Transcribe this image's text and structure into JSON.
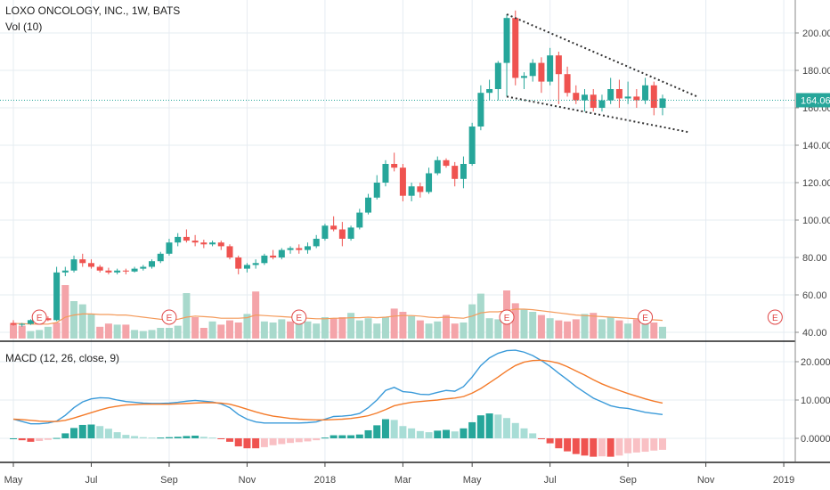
{
  "header": {
    "symbol_line": "LOXO ONCOLOGY, INC., 1W, BATS",
    "vol_line": "Vol (10)",
    "macd_line": "MACD (12, 26, close, 9)"
  },
  "colors": {
    "up": "#26a69a",
    "down": "#ef5350",
    "vol_up": "#a8d9cc",
    "vol_down": "#f4a4a9",
    "vol_ma": "#f49a5a",
    "macd_line": "#3a9ad9",
    "signal_line": "#f47b2a",
    "hist_up_strong": "#26a69a",
    "hist_up_weak": "#a8ddd6",
    "hist_down_strong": "#ef5350",
    "hist_down_weak": "#f9c0c4",
    "price_line": "#26a69a",
    "grid": "#e6ecf2",
    "earnings": "#e04848",
    "trendline": "#333333"
  },
  "chart_data": [
    {
      "type": "candlestick",
      "name": "price",
      "current_price_label": "164.06",
      "current_price": 164.06,
      "ylim": [
        30,
        213
      ],
      "y_ticks": [
        40,
        60,
        80,
        100,
        120,
        140,
        160,
        180,
        200
      ],
      "y_tick_labels": [
        "40.00",
        "60.00",
        "80.00",
        "100.00",
        "120.00",
        "140.00",
        "160.00",
        "180.00",
        "200.00"
      ],
      "x_ticks": [
        {
          "label": "May",
          "week": 0
        },
        {
          "label": "Jul",
          "week": 9
        },
        {
          "label": "Sep",
          "week": 18
        },
        {
          "label": "Nov",
          "week": 27
        },
        {
          "label": "2018",
          "week": 36
        },
        {
          "label": "Mar",
          "week": 45
        },
        {
          "label": "May",
          "week": 53
        },
        {
          "label": "Jul",
          "week": 62
        },
        {
          "label": "Sep",
          "week": 71
        },
        {
          "label": "Nov",
          "week": 80
        },
        {
          "label": "2019",
          "week": 89
        }
      ],
      "candles": [
        [
          45,
          46.5,
          43.5,
          44
        ],
        [
          44,
          45,
          43,
          44.5
        ],
        [
          44.5,
          47,
          44,
          46.5
        ],
        [
          46.5,
          48,
          45.5,
          47.5
        ],
        [
          47.5,
          48.5,
          46,
          46.5
        ],
        [
          46.5,
          75,
          46,
          72
        ],
        [
          72,
          75,
          70,
          73
        ],
        [
          73,
          81,
          72,
          79
        ],
        [
          79,
          82,
          75,
          77
        ],
        [
          77,
          79,
          74,
          75
        ],
        [
          75,
          76,
          72,
          73
        ],
        [
          73,
          74.5,
          71,
          72
        ],
        [
          72,
          74,
          71,
          73
        ],
        [
          73,
          74,
          71,
          72.5
        ],
        [
          72.5,
          75,
          72,
          74
        ],
        [
          74,
          76,
          73,
          75
        ],
        [
          75,
          79,
          74,
          78
        ],
        [
          78,
          83,
          77,
          82
        ],
        [
          82,
          90,
          81,
          88
        ],
        [
          88,
          93,
          86,
          91
        ],
        [
          91,
          95,
          88,
          89
        ],
        [
          89,
          92,
          86,
          88
        ],
        [
          88,
          89.5,
          85,
          87
        ],
        [
          87,
          89,
          86,
          88
        ],
        [
          88,
          89,
          84,
          86
        ],
        [
          86,
          87,
          79,
          80
        ],
        [
          80,
          81,
          71,
          74
        ],
        [
          74,
          77,
          72,
          76
        ],
        [
          76,
          79,
          74,
          77
        ],
        [
          77,
          82,
          76,
          81
        ],
        [
          81,
          84,
          79,
          80
        ],
        [
          80,
          85,
          79,
          84
        ],
        [
          84,
          86,
          82,
          85
        ],
        [
          85,
          87,
          82,
          84
        ],
        [
          84,
          88,
          82,
          86
        ],
        [
          86,
          92,
          85,
          90
        ],
        [
          90,
          98,
          89,
          97
        ],
        [
          97,
          102,
          94,
          95
        ],
        [
          95,
          99,
          86,
          90
        ],
        [
          90,
          97,
          89,
          96
        ],
        [
          96,
          106,
          95,
          104
        ],
        [
          104,
          114,
          103,
          112
        ],
        [
          112,
          124,
          111,
          120
        ],
        [
          120,
          132,
          118,
          130
        ],
        [
          130,
          136,
          126,
          128
        ],
        [
          128,
          130,
          110,
          113
        ],
        [
          113,
          120,
          110,
          118
        ],
        [
          118,
          120,
          112,
          115
        ],
        [
          115,
          128,
          114,
          125
        ],
        [
          125,
          134,
          124,
          132
        ],
        [
          132,
          133,
          128,
          129
        ],
        [
          129,
          131,
          118,
          122
        ],
        [
          122,
          134,
          117,
          130
        ],
        [
          130,
          152,
          129,
          150
        ],
        [
          150,
          172,
          148,
          168
        ],
        [
          168,
          175,
          164,
          170
        ],
        [
          170,
          185,
          164,
          184
        ],
        [
          184,
          210,
          166,
          208
        ],
        [
          208,
          212,
          172,
          176
        ],
        [
          176,
          179,
          170,
          177
        ],
        [
          177,
          186,
          174,
          184
        ],
        [
          184,
          187,
          168,
          174
        ],
        [
          174,
          192,
          172,
          188
        ],
        [
          188,
          190,
          162,
          178
        ],
        [
          178,
          182,
          166,
          168
        ],
        [
          168,
          172,
          162,
          164
        ],
        [
          164,
          170,
          158,
          167
        ],
        [
          167,
          170,
          158,
          160
        ],
        [
          160,
          167,
          158,
          164
        ],
        [
          164,
          176,
          162,
          170
        ],
        [
          170,
          175,
          160,
          165
        ],
        [
          165,
          174,
          162,
          166
        ],
        [
          166,
          170,
          160,
          164
        ],
        [
          164,
          176,
          162,
          172
        ],
        [
          172,
          174,
          156,
          160
        ],
        [
          160,
          167,
          156,
          165
        ]
      ],
      "trendlines": [
        {
          "from": [
            57,
            210
          ],
          "to": [
            79,
            166
          ]
        },
        {
          "from": [
            57,
            166
          ],
          "to": [
            78,
            147
          ]
        }
      ]
    },
    {
      "type": "bar",
      "name": "volume",
      "values": [
        26,
        24,
        14,
        16,
        22,
        30,
        100,
        70,
        64,
        46,
        22,
        28,
        26,
        26,
        16,
        14,
        16,
        20,
        20,
        24,
        85,
        40,
        20,
        32,
        26,
        34,
        30,
        46,
        88,
        32,
        30,
        36,
        32,
        30,
        32,
        28,
        40,
        38,
        40,
        48,
        34,
        38,
        28,
        40,
        56,
        50,
        42,
        34,
        28,
        32,
        44,
        28,
        30,
        64,
        84,
        38,
        36,
        90,
        66,
        54,
        50,
        44,
        38,
        34,
        32,
        36,
        46,
        48,
        36,
        40,
        34,
        28,
        36,
        32,
        30,
        22
      ],
      "up": [
        false,
        false,
        true,
        true,
        true,
        false,
        false,
        true,
        true,
        true,
        false,
        false,
        true,
        false,
        true,
        true,
        true,
        true,
        true,
        true,
        true,
        false,
        false,
        true,
        false,
        false,
        false,
        true,
        false,
        true,
        true,
        true,
        false,
        true,
        true,
        true,
        true,
        false,
        false,
        true,
        true,
        true,
        true,
        true,
        false,
        false,
        true,
        false,
        true,
        true,
        false,
        false,
        true,
        true,
        true,
        true,
        true,
        false,
        false,
        true,
        true,
        false,
        true,
        false,
        false,
        false,
        true,
        false,
        true,
        true,
        false,
        true,
        false,
        true,
        false,
        true
      ],
      "ma": [
        28,
        28,
        27,
        27,
        27,
        30,
        40,
        44,
        46,
        46,
        45,
        45,
        44,
        44,
        42,
        40,
        38,
        36,
        35,
        36,
        40,
        42,
        41,
        40,
        38,
        38,
        38,
        39,
        44,
        43,
        42,
        41,
        40,
        39,
        38,
        37,
        37,
        38,
        38,
        39,
        39,
        40,
        39,
        40,
        42,
        43,
        43,
        42,
        40,
        39,
        40,
        39,
        38,
        42,
        48,
        50,
        50,
        52,
        55,
        55,
        54,
        52,
        50,
        48,
        46,
        44,
        43,
        42,
        41,
        40,
        39,
        38,
        37,
        36,
        35,
        34
      ],
      "earnings_weeks": [
        3,
        18,
        33,
        57,
        73,
        88
      ]
    },
    {
      "type": "line",
      "name": "macd",
      "ylim": [
        -6,
        24
      ],
      "y_ticks": [
        0,
        10,
        20
      ],
      "y_tick_labels": [
        "0.0000",
        "10.0000",
        "20.0000"
      ],
      "series": [
        {
          "name": "MACD",
          "values": [
            5,
            4.4,
            3.8,
            3.8,
            4,
            4.5,
            6,
            8,
            9.5,
            10.3,
            10.6,
            10.5,
            10,
            9.6,
            9.4,
            9.2,
            9.1,
            9.1,
            9.2,
            9.4,
            9.7,
            9.9,
            9.7,
            9.5,
            9,
            8,
            6.2,
            5,
            4.3,
            4,
            4,
            4,
            4,
            4,
            4.1,
            4.3,
            5,
            5.7,
            5.8,
            6,
            6.5,
            8,
            10,
            12.5,
            13.3,
            12.2,
            12,
            11.5,
            11.4,
            12,
            12.5,
            12.3,
            13.5,
            16,
            19,
            21,
            22.2,
            22.9,
            23,
            22.5,
            21.6,
            20.3,
            18.8,
            17,
            15.3,
            13.5,
            12,
            10.5,
            9.5,
            8.5,
            8,
            7.8,
            7.3,
            6.8,
            6.5,
            6.2
          ]
        },
        {
          "name": "Signal",
          "values": [
            5,
            4.9,
            4.7,
            4.5,
            4.4,
            4.4,
            4.7,
            5.3,
            6,
            6.7,
            7.4,
            8,
            8.4,
            8.7,
            8.8,
            8.9,
            8.9,
            8.9,
            8.9,
            9,
            9.1,
            9.2,
            9.3,
            9.3,
            9.2,
            8.9,
            8.3,
            7.6,
            6.9,
            6.3,
            5.8,
            5.5,
            5.2,
            5,
            4.9,
            4.8,
            4.8,
            4.9,
            5,
            5.2,
            5.5,
            5.9,
            6.6,
            7.5,
            8.5,
            9,
            9.4,
            9.6,
            9.8,
            10,
            10.3,
            10.5,
            10.9,
            11.8,
            13,
            14.5,
            16,
            17.6,
            19,
            19.9,
            20.3,
            20.4,
            20.1,
            19.6,
            18.7,
            17.6,
            16.5,
            15.3,
            14.2,
            13.3,
            12.5,
            11.7,
            11,
            10.3,
            9.7,
            9.2
          ]
        }
      ],
      "histogram": [
        0,
        -0.5,
        -0.9,
        -0.7,
        -0.4,
        0.1,
        1.3,
        2.7,
        3.5,
        3.6,
        3.2,
        2.5,
        1.6,
        0.9,
        0.6,
        0.3,
        0.2,
        0.2,
        0.3,
        0.4,
        0.6,
        0.7,
        0.4,
        0.2,
        -0.2,
        -0.9,
        -2.1,
        -2.6,
        -2.6,
        -2.3,
        -1.8,
        -1.5,
        -1.2,
        -1,
        -0.8,
        -0.5,
        0.2,
        0.8,
        0.8,
        0.8,
        1,
        2.1,
        3.4,
        5,
        4.8,
        3.2,
        2.6,
        1.9,
        1.6,
        2,
        2.2,
        1.8,
        2.6,
        4.2,
        6,
        6.5,
        6.2,
        5.3,
        4,
        2.6,
        1.3,
        -0.1,
        -1.3,
        -2.6,
        -3.4,
        -4.1,
        -4.5,
        -4.8,
        -4.7,
        -4.8,
        -4.5,
        -3.9,
        -3.7,
        -3.5,
        -3.2,
        -3
      ]
    }
  ]
}
